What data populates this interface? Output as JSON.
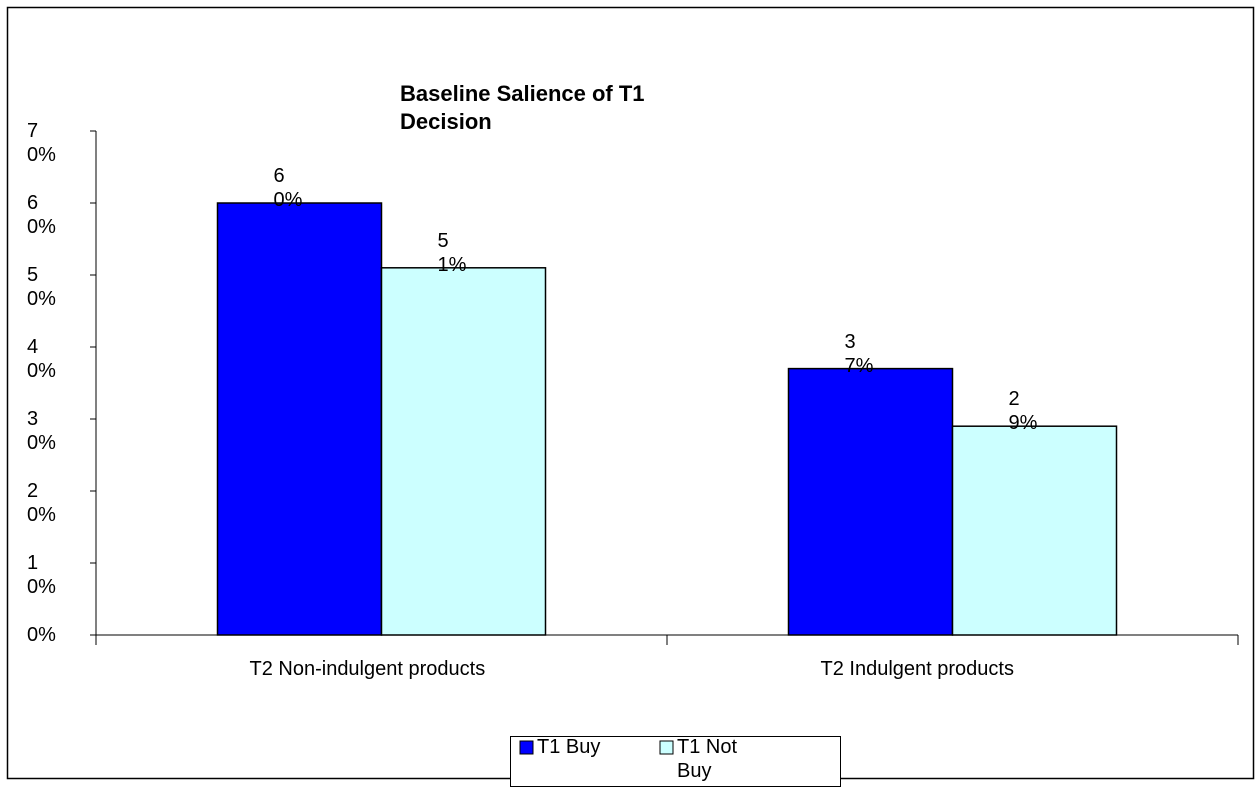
{
  "chart_data": {
    "type": "bar",
    "title": "Baseline Salience of T1 Decision",
    "categories": [
      "T2 Non-indulgent products",
      "T2 Indulgent products"
    ],
    "series": [
      {
        "name": "T1 Buy",
        "color": "#0000ff",
        "values": [
          60,
          37
        ],
        "value_labels": [
          "60%",
          "37%"
        ]
      },
      {
        "name": "T1 Not Buy",
        "color": "#ccffff",
        "values": [
          51,
          29
        ],
        "value_labels": [
          "51%",
          "29%"
        ]
      }
    ],
    "ylim": [
      0,
      70
    ],
    "yticks": [
      {
        "value": 0,
        "label": "0%"
      },
      {
        "value": 10,
        "label": "10%"
      },
      {
        "value": 20,
        "label": "20%"
      },
      {
        "value": 30,
        "label": "30%"
      },
      {
        "value": 40,
        "label": "40%"
      },
      {
        "value": 50,
        "label": "50%"
      },
      {
        "value": 60,
        "label": "60%"
      },
      {
        "value": 70,
        "label": "70%"
      }
    ],
    "grid": false,
    "legend": "bottom"
  }
}
